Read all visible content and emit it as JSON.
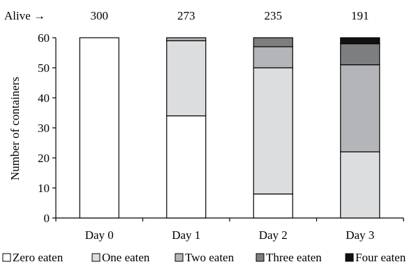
{
  "chart_data": {
    "type": "bar",
    "stacked": true,
    "categories": [
      "Day 0",
      "Day 1",
      "Day 2",
      "Day 3"
    ],
    "series": [
      {
        "name": "Zero eaten",
        "values": [
          60,
          34,
          8,
          0
        ],
        "color": "#ffffff"
      },
      {
        "name": "One eaten",
        "values": [
          0,
          25,
          42,
          22
        ],
        "color": "#dcdddf"
      },
      {
        "name": "Two eaten",
        "values": [
          0,
          1,
          7,
          29
        ],
        "color": "#b4b5b8"
      },
      {
        "name": "Three eaten",
        "values": [
          0,
          0,
          3,
          7
        ],
        "color": "#7d7e80"
      },
      {
        "name": "Four eaten",
        "values": [
          0,
          0,
          0,
          2
        ],
        "color": "#111111"
      }
    ],
    "ylabel": "Number of containers",
    "ylim": [
      0,
      60
    ],
    "yticks": [
      0,
      10,
      20,
      30,
      40,
      50,
      60
    ],
    "grid": false,
    "legend_position": "bottom",
    "annotation": {
      "label": "Alive →",
      "values": [
        "300",
        "273",
        "235",
        "191"
      ]
    }
  }
}
